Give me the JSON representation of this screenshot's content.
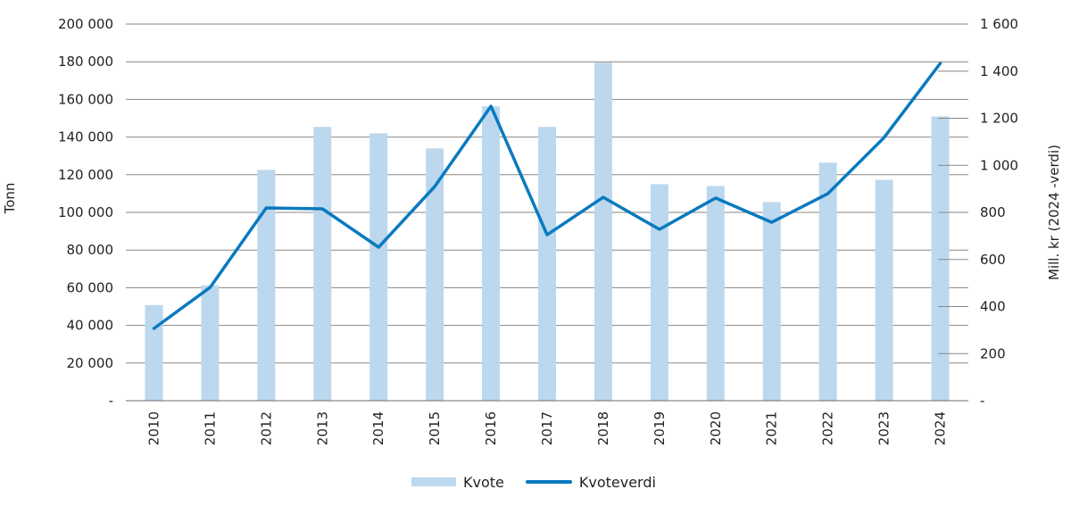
{
  "chart_data": {
    "type": "bar+line",
    "title": "",
    "categories": [
      "2010",
      "2011",
      "2012",
      "2013",
      "2014",
      "2015",
      "2016",
      "2017",
      "2018",
      "2019",
      "2020",
      "2021",
      "2022",
      "2023",
      "2024"
    ],
    "series": [
      {
        "name": "Kvote",
        "type": "bar",
        "axis": "left",
        "color": "#bcd8ee",
        "values": [
          50800,
          61300,
          122600,
          145400,
          142000,
          134000,
          156300,
          145400,
          179600,
          115000,
          114000,
          105500,
          126400,
          117300,
          151000
        ]
      },
      {
        "name": "Kvoteverdi",
        "type": "line",
        "axis": "right",
        "color": "#0a7abf",
        "values": [
          307,
          481,
          819,
          815,
          652,
          910,
          1251,
          705,
          864,
          728,
          861,
          758,
          880,
          1118,
          1433
        ]
      }
    ],
    "ylabel": "Tonn",
    "y2label": "Mill. kr (2024 -verdi)",
    "xlabel": "",
    "ylim": [
      0,
      200000
    ],
    "y2lim": [
      0,
      1600
    ],
    "yticks": [
      "-",
      "20 000",
      "40 000",
      "60 000",
      "80 000",
      "100 000",
      "120 000",
      "140 000",
      "160 000",
      "180 000",
      "200 000"
    ],
    "y2ticks": [
      "-",
      "200",
      "400",
      "600",
      "800",
      "1 000",
      "1 200",
      "1 400",
      "1 600"
    ],
    "grid": true,
    "legend_position": "bottom"
  },
  "legend": {
    "items": [
      {
        "label": "Kvote"
      },
      {
        "label": "Kvoteverdi"
      }
    ]
  }
}
